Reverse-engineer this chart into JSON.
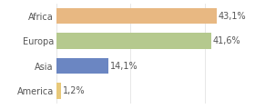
{
  "categories": [
    "America",
    "Asia",
    "Europa",
    "Africa"
  ],
  "values": [
    1.2,
    14.1,
    41.6,
    43.1
  ],
  "labels": [
    "1,2%",
    "14,1%",
    "41,6%",
    "43,1%"
  ],
  "bar_colors": [
    "#e8c97a",
    "#6b86c2",
    "#b5c98e",
    "#e8b882"
  ],
  "xlim": [
    0,
    52
  ],
  "background_color": "#ffffff",
  "label_fontsize": 7.0,
  "tick_fontsize": 7.0
}
